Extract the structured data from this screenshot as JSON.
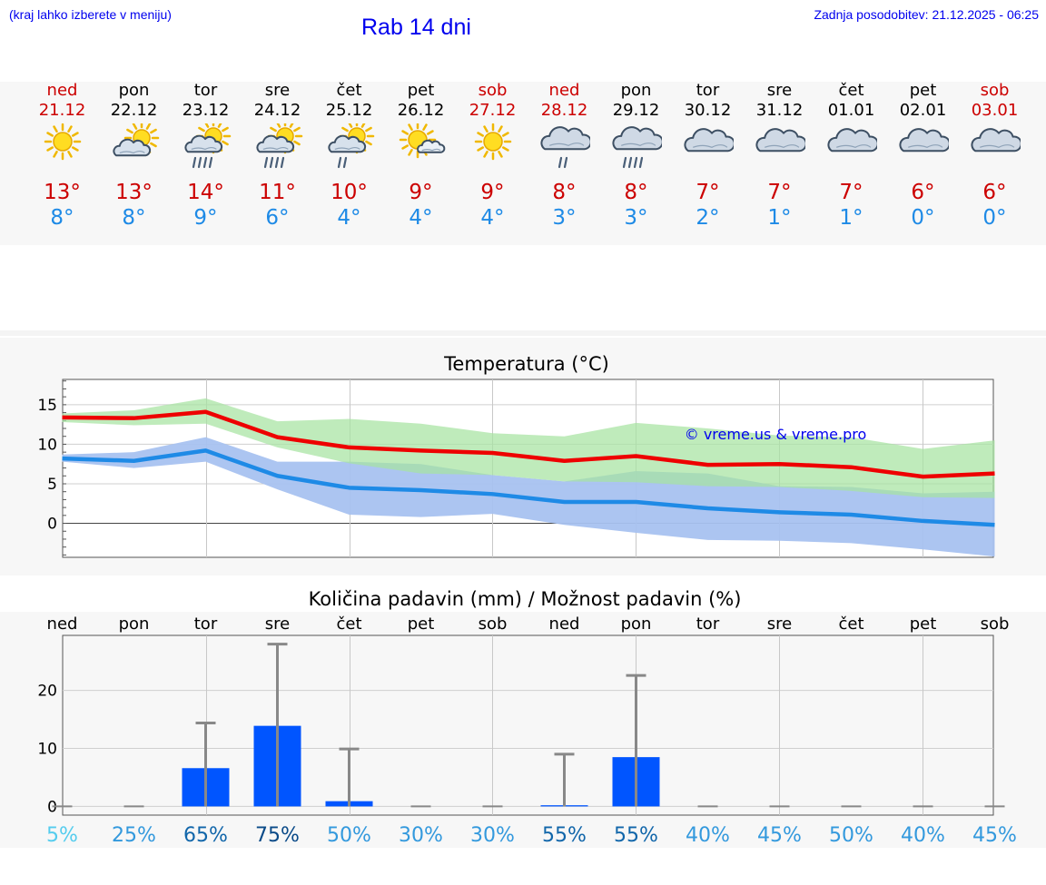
{
  "header": {
    "hint": "(kraj lahko izberete v meniju)",
    "title": "Rab 14 dni",
    "updated": "Zadnja posodobitev: 21.12.2025 - 06:25"
  },
  "days": [
    {
      "name": "ned",
      "date": "21.12",
      "weekend": true,
      "icon": "sun-icon",
      "tmax": "13°",
      "tmin": "8°"
    },
    {
      "name": "pon",
      "date": "22.12",
      "weekend": false,
      "icon": "sun-cloud-icon",
      "tmax": "13°",
      "tmin": "8°"
    },
    {
      "name": "tor",
      "date": "23.12",
      "weekend": false,
      "icon": "sun-cloud-rain-icon",
      "tmax": "14°",
      "tmin": "9°"
    },
    {
      "name": "sre",
      "date": "24.12",
      "weekend": false,
      "icon": "sun-cloud-rain-icon",
      "tmax": "11°",
      "tmin": "6°"
    },
    {
      "name": "čet",
      "date": "25.12",
      "weekend": false,
      "icon": "sun-cloud-light-rain-icon",
      "tmax": "10°",
      "tmin": "4°"
    },
    {
      "name": "pet",
      "date": "26.12",
      "weekend": false,
      "icon": "sun-small-cloud-icon",
      "tmax": "9°",
      "tmin": "4°"
    },
    {
      "name": "sob",
      "date": "27.12",
      "weekend": true,
      "icon": "sun-icon",
      "tmax": "9°",
      "tmin": "4°"
    },
    {
      "name": "ned",
      "date": "28.12",
      "weekend": true,
      "icon": "cloud-light-rain-icon",
      "tmax": "8°",
      "tmin": "3°"
    },
    {
      "name": "pon",
      "date": "29.12",
      "weekend": false,
      "icon": "cloud-rain-icon",
      "tmax": "8°",
      "tmin": "3°"
    },
    {
      "name": "tor",
      "date": "30.12",
      "weekend": false,
      "icon": "cloud-icon",
      "tmax": "7°",
      "tmin": "2°"
    },
    {
      "name": "sre",
      "date": "31.12",
      "weekend": false,
      "icon": "cloud-icon",
      "tmax": "7°",
      "tmin": "1°"
    },
    {
      "name": "čet",
      "date": "01.01",
      "weekend": false,
      "icon": "cloud-icon",
      "tmax": "7°",
      "tmin": "1°"
    },
    {
      "name": "pet",
      "date": "02.01",
      "weekend": false,
      "icon": "cloud-icon",
      "tmax": "6°",
      "tmin": "0°"
    },
    {
      "name": "sob",
      "date": "03.01",
      "weekend": true,
      "icon": "cloud-icon",
      "tmax": "6°",
      "tmin": "0°"
    }
  ],
  "colors": {
    "weekend": "#cc0000",
    "weekday": "#000000",
    "tmax": "#cc0000",
    "tmin": "#1e8ae6",
    "max_line": "#ee0000",
    "min_line": "#1e8ae6",
    "max_band": "#a6e3a1",
    "min_band": "#a8c2f0",
    "overlap": "#7ec4a0",
    "precip_bar": "#0055ff",
    "error_bar": "#888888",
    "prob_scale": [
      "#55ccee",
      "#3399dd",
      "#1166aa",
      "#0a4a88"
    ]
  },
  "chart_data": [
    {
      "type": "line",
      "title": "Temperatura (°C)",
      "xlabel": "",
      "ylabel": "",
      "ylim": [
        -4.3,
        18.2
      ],
      "yticks": [
        0,
        5,
        10,
        15
      ],
      "grid": true,
      "watermark": "© vreme.us & vreme.pro",
      "x": [
        0,
        1,
        2,
        3,
        4,
        5,
        6,
        7,
        8,
        9,
        10,
        11,
        12,
        13
      ],
      "series": [
        {
          "name": "max",
          "values": [
            13.4,
            13.3,
            14.1,
            10.9,
            9.6,
            9.2,
            8.9,
            7.9,
            8.5,
            7.4,
            7.5,
            7.1,
            5.9,
            6.3
          ],
          "band_low": [
            12.8,
            12.4,
            12.6,
            9.6,
            7.6,
            6.3,
            6.1,
            5.3,
            5.2,
            4.7,
            4.6,
            4.1,
            3.3,
            3.2
          ],
          "band_high": [
            13.9,
            14.3,
            15.8,
            12.9,
            13.2,
            12.6,
            11.4,
            11.0,
            12.7,
            12.0,
            11.1,
            10.9,
            9.4,
            10.5
          ]
        },
        {
          "name": "min",
          "values": [
            8.2,
            7.9,
            9.2,
            6.0,
            4.5,
            4.2,
            3.7,
            2.7,
            2.7,
            1.9,
            1.4,
            1.1,
            0.3,
            -0.2
          ],
          "band_low": [
            7.8,
            7.0,
            7.8,
            4.3,
            1.1,
            0.8,
            1.2,
            -0.2,
            -1.2,
            -2.1,
            -2.2,
            -2.5,
            -3.3,
            -4.2
          ],
          "band_high": [
            8.7,
            9.0,
            10.9,
            7.8,
            7.8,
            7.5,
            6.1,
            5.3,
            6.6,
            6.3,
            4.7,
            4.6,
            3.8,
            4.0
          ]
        }
      ]
    },
    {
      "type": "bar",
      "title": "Količina padavin (mm) / Možnost padavin (%)",
      "xlabel": "",
      "ylabel": "",
      "ylim": [
        -1.5,
        29.5
      ],
      "yticks": [
        0,
        10,
        20
      ],
      "grid": true,
      "categories": [
        "ned",
        "pon",
        "tor",
        "sre",
        "čet",
        "pet",
        "sob",
        "ned",
        "pon",
        "tor",
        "sre",
        "čet",
        "pet",
        "sob"
      ],
      "values": [
        0.0,
        0.0,
        6.6,
        13.9,
        0.9,
        0.0,
        0.0,
        0.2,
        8.5,
        0.0,
        0.0,
        0.0,
        0.0,
        0.0
      ],
      "error_high": [
        0.0,
        0.0,
        14.4,
        28.0,
        9.9,
        0.0,
        0.0,
        9.0,
        22.6,
        0.0,
        0.0,
        0.0,
        0.0,
        0.0
      ],
      "probability": [
        "5%",
        "25%",
        "65%",
        "75%",
        "50%",
        "30%",
        "30%",
        "55%",
        "55%",
        "40%",
        "45%",
        "50%",
        "40%",
        "45%"
      ]
    }
  ]
}
